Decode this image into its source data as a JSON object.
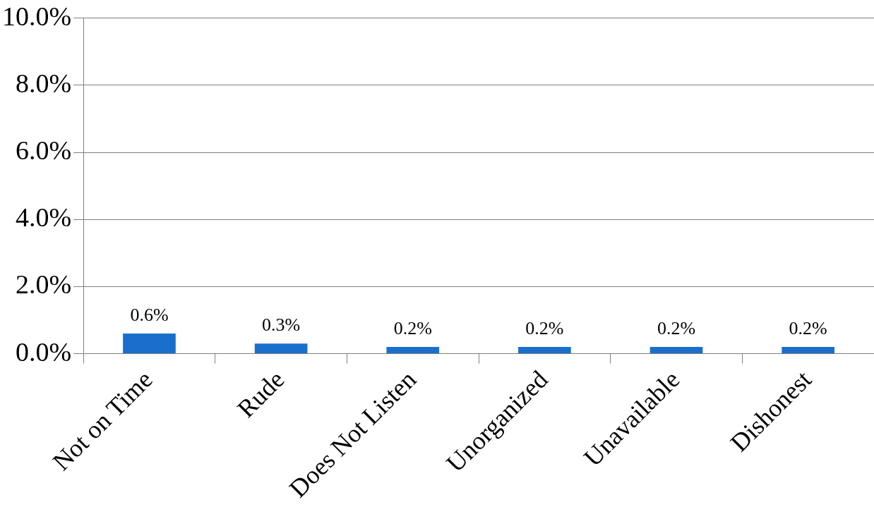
{
  "chart_data": {
    "type": "bar",
    "categories": [
      "Not on Time",
      "Rude",
      "Does Not Listen",
      "Unorganized",
      "Unavailable",
      "Dishonest"
    ],
    "values": [
      0.6,
      0.3,
      0.2,
      0.2,
      0.2,
      0.2
    ],
    "value_labels": [
      "0.6%",
      "0.3%",
      "0.2%",
      "0.2%",
      "0.2%",
      "0.2%"
    ],
    "color": "#1a6fcd",
    "ylim": [
      0,
      10
    ],
    "yticks": [
      {
        "value": 0,
        "label": "0.0%"
      },
      {
        "value": 2,
        "label": "2.0%"
      },
      {
        "value": 4,
        "label": "4.0%"
      },
      {
        "value": 6,
        "label": "6.0%"
      },
      {
        "value": 8,
        "label": "8.0%"
      },
      {
        "value": 10,
        "label": "10.0%"
      }
    ],
    "grid": "y",
    "legend": false
  }
}
